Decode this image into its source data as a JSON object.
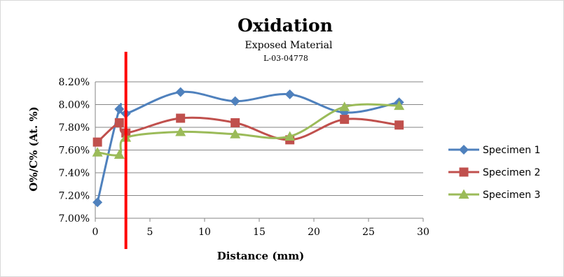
{
  "chart_data": {
    "type": "line",
    "title": "Oxidation",
    "subtitle": "Exposed Material",
    "subtitle2": "L-03-04778",
    "xlabel": "Distance (mm)",
    "ylabel": "O%/C% (At. %)",
    "xlim": [
      0,
      30
    ],
    "ylim": [
      7.0,
      8.2
    ],
    "x_ticks": [
      "0",
      "5",
      "10",
      "15",
      "20",
      "25",
      "30"
    ],
    "y_ticks": [
      "7.00%",
      "7.20%",
      "7.40%",
      "7.60%",
      "7.80%",
      "8.00%",
      "8.20%"
    ],
    "grid": "horizontal",
    "legend_position": "right",
    "marker_line_x": 2.8,
    "marker_line_color": "#ff0000",
    "series": [
      {
        "name": "Specimen 1",
        "color": "#4f81bd",
        "marker": "diamond",
        "points": [
          [
            0.2,
            7.14
          ],
          [
            2.2,
            7.96
          ],
          [
            2.8,
            7.92
          ],
          [
            7.8,
            8.11
          ],
          [
            12.8,
            8.03
          ],
          [
            17.8,
            8.09
          ],
          [
            22.8,
            7.93
          ],
          [
            27.8,
            8.02
          ]
        ]
      },
      {
        "name": "Specimen 2",
        "color": "#c0504d",
        "marker": "square",
        "points": [
          [
            0.2,
            7.67
          ],
          [
            2.2,
            7.84
          ],
          [
            2.8,
            7.75
          ],
          [
            7.8,
            7.88
          ],
          [
            12.8,
            7.84
          ],
          [
            17.8,
            7.69
          ],
          [
            22.8,
            7.87
          ],
          [
            27.8,
            7.82
          ]
        ]
      },
      {
        "name": "Specimen 3",
        "color": "#9bbb59",
        "marker": "triangle",
        "points": [
          [
            0.2,
            7.58
          ],
          [
            2.2,
            7.56
          ],
          [
            2.8,
            7.71
          ],
          [
            7.8,
            7.76
          ],
          [
            12.8,
            7.74
          ],
          [
            17.8,
            7.72
          ],
          [
            22.8,
            7.98
          ],
          [
            27.8,
            7.99
          ]
        ]
      }
    ]
  }
}
